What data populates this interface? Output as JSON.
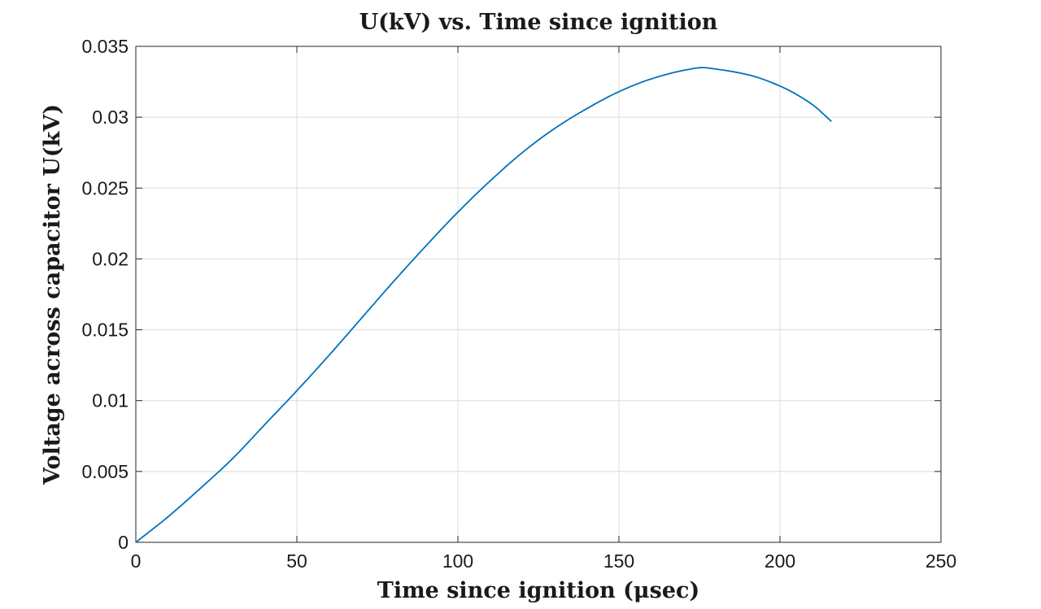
{
  "chart_data": {
    "type": "line",
    "title": "U(kV) vs. Time since ignition",
    "xlabel": "Time since ignition (μsec)",
    "ylabel": "Voltage across capacitor U(kV)",
    "xlim": [
      0,
      250
    ],
    "ylim": [
      0,
      0.035
    ],
    "xticks": [
      0,
      50,
      100,
      150,
      200,
      250
    ],
    "xtick_labels": [
      "0",
      "50",
      "100",
      "150",
      "200",
      "250"
    ],
    "yticks": [
      0,
      0.005,
      0.01,
      0.015,
      0.02,
      0.025,
      0.03,
      0.035
    ],
    "ytick_labels": [
      "0",
      "0.005",
      "0.01",
      "0.015",
      "0.02",
      "0.025",
      "0.03",
      "0.035"
    ],
    "grid": true,
    "legend": false,
    "series": [
      {
        "color": "#0072BD",
        "x": [
          0,
          10,
          20,
          30,
          40,
          50,
          60,
          70,
          80,
          90,
          100,
          110,
          120,
          130,
          140,
          150,
          160,
          170,
          176,
          180,
          190,
          200,
          210,
          216
        ],
        "y": [
          0,
          0.0018,
          0.0038,
          0.0059,
          0.0083,
          0.0107,
          0.0132,
          0.0158,
          0.0184,
          0.0209,
          0.0233,
          0.0255,
          0.0275,
          0.0292,
          0.0306,
          0.0318,
          0.0327,
          0.0333,
          0.0335,
          0.0334,
          0.033,
          0.0322,
          0.0309,
          0.0297
        ]
      }
    ]
  }
}
